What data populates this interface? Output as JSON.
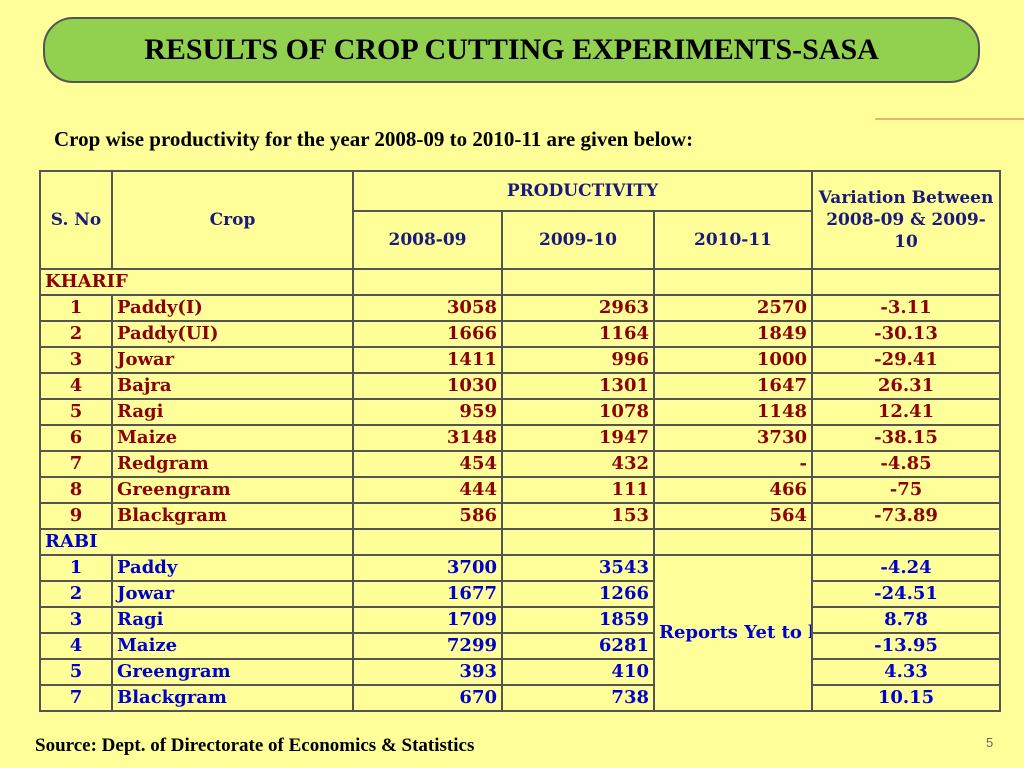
{
  "title": "RESULTS OF CROP CUTTING EXPERIMENTS-SASA",
  "subtitle": "Crop wise productivity for the year 2008-09 to 2010-11 are given below:",
  "table": {
    "headers": {
      "sno": "S. No",
      "crop": "Crop",
      "productivity": "PRODUCTIVITY",
      "y1": "2008-09",
      "y2": "2009-10",
      "y3": "2010-11",
      "variation": "Variation Between 2008-09 & 2009-10"
    },
    "kharif_label": "KHARIF",
    "kharif": [
      {
        "sno": "1",
        "crop": "Paddy(I)",
        "y1": "3058",
        "y2": "2963",
        "y3": "2570",
        "var": "-3.11"
      },
      {
        "sno": "2",
        "crop": "Paddy(UI)",
        "y1": "1666",
        "y2": "1164",
        "y3": "1849",
        "var": "-30.13"
      },
      {
        "sno": "3",
        "crop": "Jowar",
        "y1": "1411",
        "y2": "996",
        "y3": "1000",
        "var": "-29.41"
      },
      {
        "sno": "4",
        "crop": "Bajra",
        "y1": "1030",
        "y2": "1301",
        "y3": "1647",
        "var": "26.31"
      },
      {
        "sno": "5",
        "crop": "Ragi",
        "y1": "959",
        "y2": "1078",
        "y3": "1148",
        "var": "12.41"
      },
      {
        "sno": "6",
        "crop": "Maize",
        "y1": "3148",
        "y2": "1947",
        "y3": "3730",
        "var": "-38.15"
      },
      {
        "sno": "7",
        "crop": "Redgram",
        "y1": "454",
        "y2": "432",
        "y3": "-",
        "var": "-4.85"
      },
      {
        "sno": "8",
        "crop": "Greengram",
        "y1": "444",
        "y2": "111",
        "y3": "466",
        "var": "-75"
      },
      {
        "sno": "9",
        "crop": "Blackgram",
        "y1": "586",
        "y2": "153",
        "y3": "564",
        "var": "-73.89"
      }
    ],
    "rabi_label": "RABI",
    "rabi": [
      {
        "sno": "1",
        "crop": "Paddy",
        "y1": "3700",
        "y2": "3543",
        "var": "-4.24"
      },
      {
        "sno": "2",
        "crop": "Jowar",
        "y1": "1677",
        "y2": "1266",
        "var": "-24.51"
      },
      {
        "sno": "3",
        "crop": "Ragi",
        "y1": "1709",
        "y2": "1859",
        "var": "8.78"
      },
      {
        "sno": "4",
        "crop": "Maize",
        "y1": "7299",
        "y2": "6281",
        "var": "-13.95"
      },
      {
        "sno": "5",
        "crop": "Greengram",
        "y1": "393",
        "y2": "410",
        "var": "4.33"
      },
      {
        "sno": "7",
        "crop": "Blackgram",
        "y1": "670",
        "y2": "738",
        "var": "10.15"
      }
    ],
    "rabi_2010_note": "Reports Yet to be Received"
  },
  "source": "Source: Dept. of Directorate of Economics & Statistics",
  "page_number": "5",
  "colors": {
    "background": "#ffff99",
    "title_fill": "#92d050",
    "kharif_text": "#8b0000",
    "rabi_text": "#0000cc",
    "header_text": "#1a1a7a"
  }
}
